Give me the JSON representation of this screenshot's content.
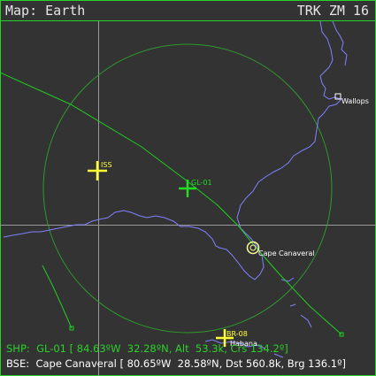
{
  "header": {
    "map_title": "Map: Earth",
    "mode": "TRK ZM 16"
  },
  "map": {
    "colors": {
      "background": "#333333",
      "frame": "#2ad12a",
      "grid": "#9a9a9a",
      "coastline": "#8080ff",
      "track": "#22cc22",
      "range_ring": "#2e9a2e",
      "ship": "#22dd22",
      "selected_contact": "#ffff33",
      "base_marker": "#ffff99",
      "station_marker": "#ffffff"
    },
    "contacts": [
      {
        "id": "ISS",
        "label": "ISS",
        "icon": "crosshair-icon"
      },
      {
        "id": "GL-01",
        "label": "GL-01",
        "icon": "crosshair-icon"
      },
      {
        "id": "BR-08",
        "label": "BR-08",
        "icon": "crosshair-icon"
      }
    ],
    "places": [
      {
        "label": "Cape Canaveral",
        "icon": "base-target-icon"
      },
      {
        "label": "Wallops",
        "icon": "station-square-icon"
      },
      {
        "label": "Habana",
        "icon": "city-label"
      }
    ]
  },
  "status": {
    "ship": "SHP:  GL-01 [ 84.63ºW  32.28ºN, Alt  53.3k, Crs 134.2º]",
    "base": "BSE:  Cape Canaveral [ 80.65ºW  28.58ºN, Dst 560.8k, Brg 136.1º]"
  }
}
